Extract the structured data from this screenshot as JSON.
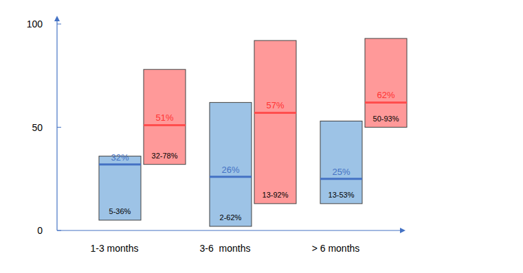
{
  "chart_data": {
    "type": "range",
    "categories": [
      "1-3 months",
      "3-6  months",
      "> 6 months"
    ],
    "ylim": [
      0,
      100
    ],
    "yticks": [
      0,
      50,
      100
    ],
    "grid": false,
    "data_labels": true,
    "series": [
      {
        "color": "#9dc3e6",
        "values": [
          32,
          26,
          25
        ],
        "low": [
          5,
          2,
          13
        ],
        "high": [
          36,
          62,
          53
        ],
        "value_labels": [
          "32%",
          "26%",
          "25%"
        ],
        "range_labels": [
          "5-36%",
          "2-62%",
          "13-53%"
        ]
      },
      {
        "color": "#ff9999",
        "values": [
          51,
          57,
          62
        ],
        "low": [
          32,
          13,
          50
        ],
        "high": [
          78,
          92,
          93
        ],
        "value_labels": [
          "51%",
          "57%",
          "62%"
        ],
        "range_labels": [
          "32-78%",
          "13-92%",
          "50-93%"
        ]
      }
    ]
  }
}
